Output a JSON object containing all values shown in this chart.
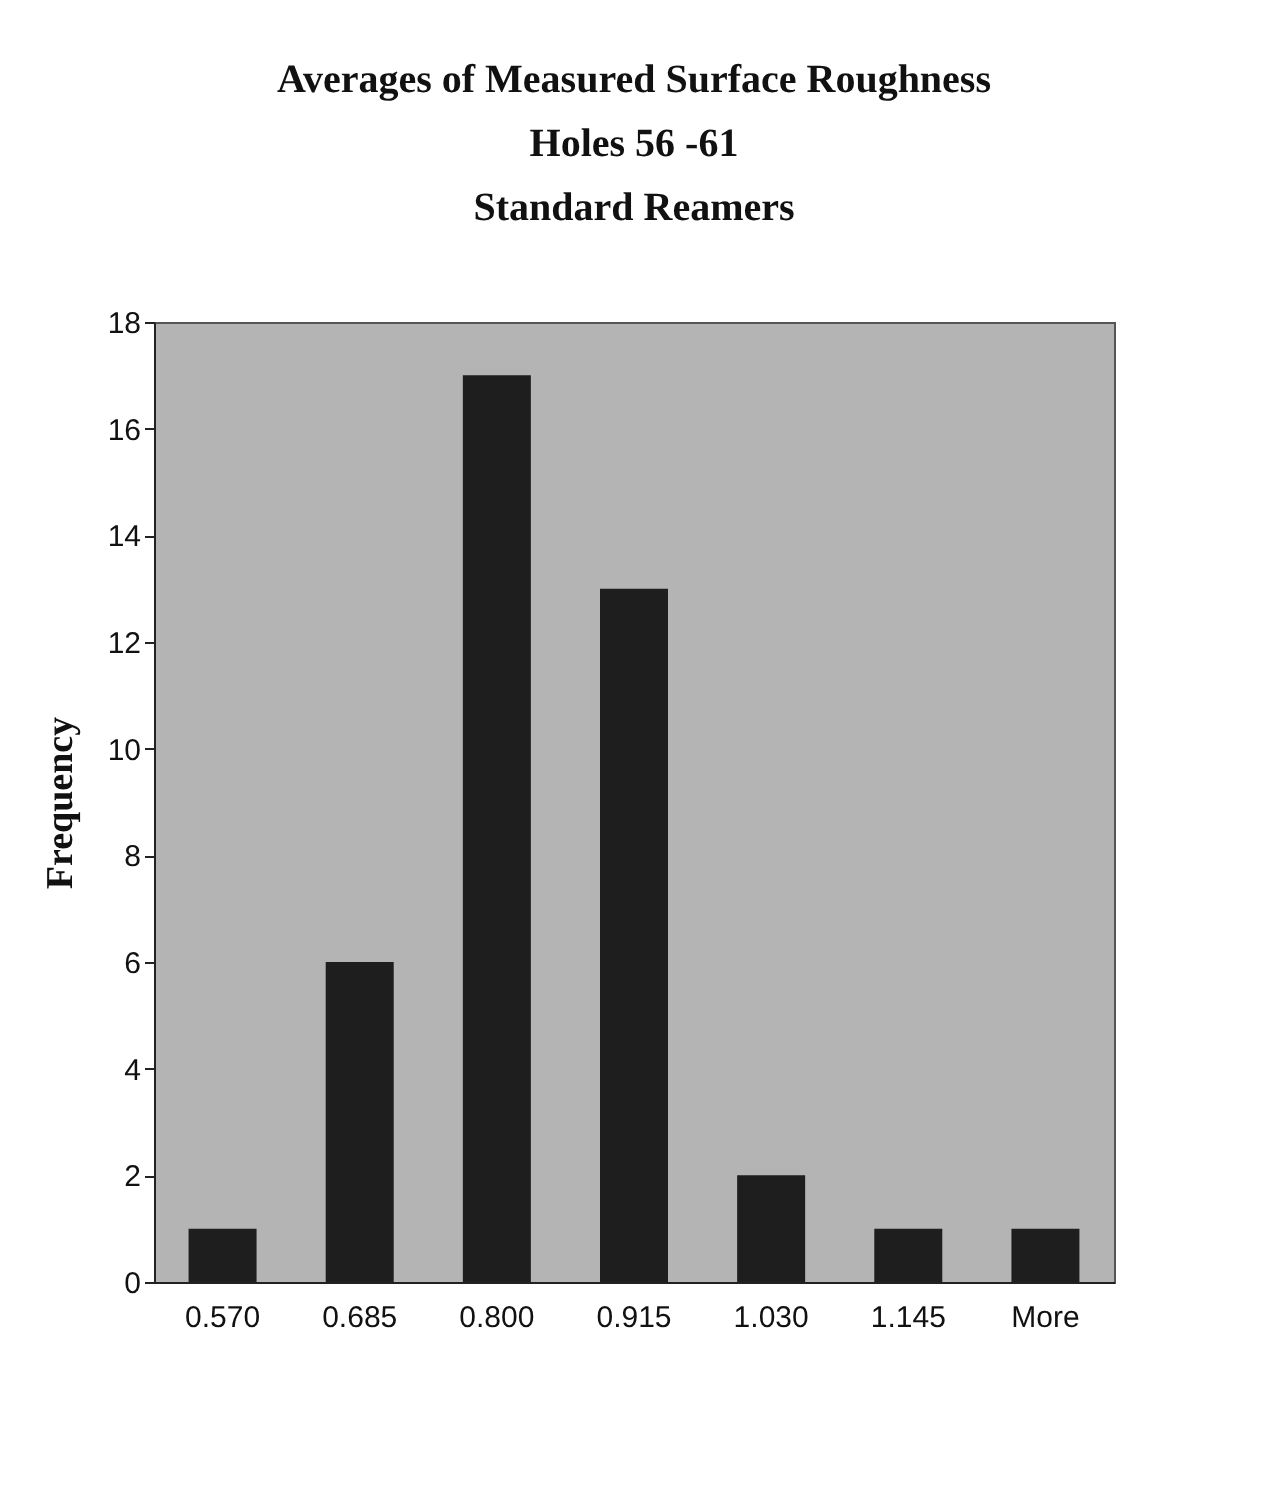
{
  "chart_data": {
    "type": "bar",
    "title": "Averages of Measured Surface Roughness\nHoles 56 -61\nStandard Reamers",
    "ylabel": "Frequency",
    "categories": [
      "0.570",
      "0.685",
      "0.800",
      "0.915",
      "1.030",
      "1.145",
      "More"
    ],
    "values": [
      1,
      6,
      17,
      13,
      2,
      1,
      1
    ],
    "color": "#1e1e1e",
    "ylim": [
      0,
      18
    ],
    "yticks": [
      0,
      2,
      4,
      6,
      8,
      10,
      12,
      14,
      16,
      18
    ],
    "grid": false
  }
}
